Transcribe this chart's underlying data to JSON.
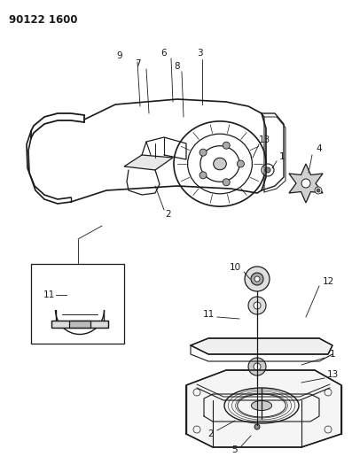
{
  "title_code": "90122 1600",
  "bg_color": "#ffffff",
  "line_color": "#1a1a1a",
  "fig_width": 3.97,
  "fig_height": 5.33,
  "dpi": 100
}
